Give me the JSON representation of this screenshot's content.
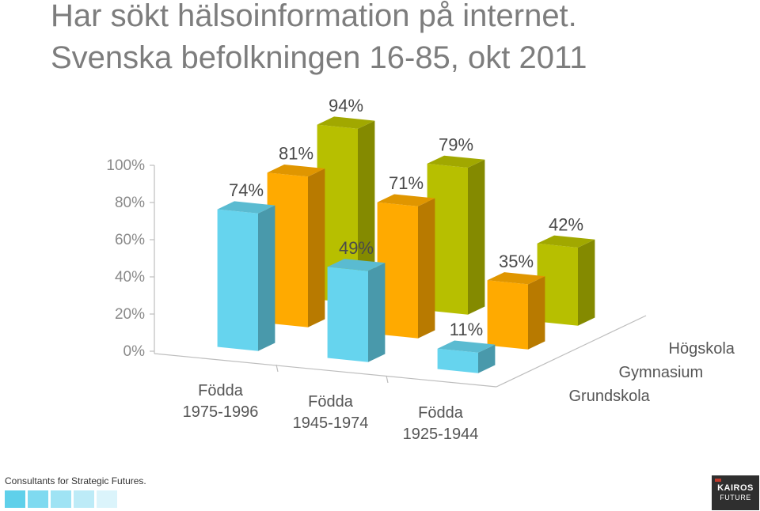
{
  "header": {
    "title_line1": "Har sökt hälsoinformation på internet.",
    "title_line2": "Svenska befolkningen 16-85, okt 2011"
  },
  "chart_data": {
    "type": "bar",
    "title": "Har sökt hälsoinformation på internet. Svenska befolkningen 16-85, okt 2011",
    "categories": [
      "Födda\n1975-1996",
      "Födda\n1945-1974",
      "Födda\n1925-1944"
    ],
    "series": [
      {
        "name": "Grundskola",
        "values": [
          74,
          49,
          11
        ],
        "color": "#66d4ee"
      },
      {
        "name": "Gymnasium",
        "values": [
          81,
          71,
          35
        ],
        "color": "#ffaa00"
      },
      {
        "name": "Högskola",
        "values": [
          94,
          79,
          42
        ],
        "color": "#b7bf00"
      }
    ],
    "value_labels": [
      [
        "74%",
        "49%",
        "11%"
      ],
      [
        "81%",
        "71%",
        "35%"
      ],
      [
        "94%",
        "79%",
        "42%"
      ]
    ],
    "y_ticks": [
      "0%",
      "20%",
      "40%",
      "60%",
      "80%",
      "100%"
    ],
    "ylim": [
      0,
      100
    ],
    "projection": "3d-perspective",
    "grid": false
  },
  "footer": {
    "tagline": "Consultants for Strategic Futures.",
    "swatch_colors": [
      "#5fd0ea",
      "#7fdaf0",
      "#9fe3f4",
      "#bdebf7",
      "#dbf4fb"
    ],
    "logo_line1": "KAIROS",
    "logo_line2": "FUTURE"
  }
}
